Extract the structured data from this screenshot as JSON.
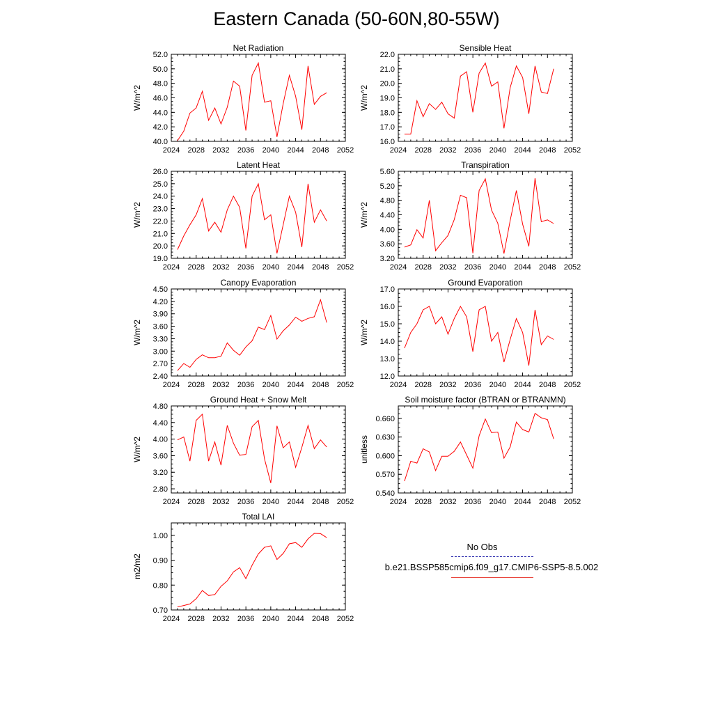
{
  "title": "Eastern Canada (50-60N,80-55W)",
  "legend": {
    "obs_label": "No Obs",
    "case_label": "b.e21.BSSP585cmip6.f09_g17.CMIP6-SSP5-8.5.002",
    "case_color": "#ff0000",
    "obs_color": "#2222aa"
  },
  "chart_data": [
    {
      "type": "line",
      "title": "Net Radiation",
      "ylabel": "W/m^2",
      "xlabel": "",
      "xlim": [
        2024,
        2052
      ],
      "ylim": [
        40.0,
        52.0
      ],
      "xticks": [
        2024,
        2028,
        2032,
        2036,
        2040,
        2044,
        2048,
        2052
      ],
      "yticks": [
        40.0,
        42.0,
        44.0,
        46.0,
        48.0,
        50.0,
        52.0
      ],
      "ytick_labels": [
        "40.0",
        "42.0",
        "44.0",
        "46.0",
        "48.0",
        "50.0",
        "52.0"
      ],
      "x": [
        2025,
        2026,
        2027,
        2028,
        2029,
        2030,
        2031,
        2032,
        2033,
        2034,
        2035,
        2036,
        2037,
        2038,
        2039,
        2040,
        2041,
        2042,
        2043,
        2044,
        2045,
        2046,
        2047,
        2048,
        2049
      ],
      "series": [
        {
          "values": [
            40.1,
            41.4,
            43.9,
            44.6,
            46.9,
            42.9,
            44.6,
            42.4,
            44.7,
            48.3,
            47.6,
            41.5,
            49.1,
            50.8,
            45.4,
            45.6,
            40.6,
            45.2,
            49.1,
            46.2,
            41.6,
            50.4,
            45.1,
            46.2,
            46.7
          ]
        }
      ]
    },
    {
      "type": "line",
      "title": "Sensible Heat",
      "ylabel": "W/m^2",
      "xlabel": "",
      "xlim": [
        2024,
        2052
      ],
      "ylim": [
        16.0,
        22.0
      ],
      "xticks": [
        2024,
        2028,
        2032,
        2036,
        2040,
        2044,
        2048,
        2052
      ],
      "yticks": [
        16.0,
        17.0,
        18.0,
        19.0,
        20.0,
        21.0,
        22.0
      ],
      "ytick_labels": [
        "16.0",
        "17.0",
        "18.0",
        "19.0",
        "20.0",
        "21.0",
        "22.0"
      ],
      "x": [
        2025,
        2026,
        2027,
        2028,
        2029,
        2030,
        2031,
        2032,
        2033,
        2034,
        2035,
        2036,
        2037,
        2038,
        2039,
        2040,
        2041,
        2042,
        2043,
        2044,
        2045,
        2046,
        2047,
        2048,
        2049
      ],
      "series": [
        {
          "values": [
            16.5,
            16.5,
            18.8,
            17.7,
            18.6,
            18.2,
            18.7,
            17.9,
            17.6,
            20.5,
            20.8,
            18.0,
            20.7,
            21.4,
            19.8,
            20.1,
            16.9,
            19.7,
            21.2,
            20.4,
            17.9,
            21.2,
            19.4,
            19.3,
            21.0
          ]
        }
      ]
    },
    {
      "type": "line",
      "title": "Latent Heat",
      "ylabel": "W/m^2",
      "xlabel": "",
      "xlim": [
        2024,
        2052
      ],
      "ylim": [
        19.0,
        26.0
      ],
      "xticks": [
        2024,
        2028,
        2032,
        2036,
        2040,
        2044,
        2048,
        2052
      ],
      "yticks": [
        19.0,
        20.0,
        21.0,
        22.0,
        23.0,
        24.0,
        25.0,
        26.0
      ],
      "ytick_labels": [
        "19.0",
        "20.0",
        "21.0",
        "22.0",
        "23.0",
        "24.0",
        "25.0",
        "26.0"
      ],
      "x": [
        2025,
        2026,
        2027,
        2028,
        2029,
        2030,
        2031,
        2032,
        2033,
        2034,
        2035,
        2036,
        2037,
        2038,
        2039,
        2040,
        2041,
        2042,
        2043,
        2044,
        2045,
        2046,
        2047,
        2048,
        2049
      ],
      "series": [
        {
          "values": [
            19.7,
            20.8,
            21.7,
            22.5,
            23.8,
            21.2,
            21.9,
            21.1,
            22.9,
            24.0,
            23.1,
            19.8,
            24.0,
            25.0,
            22.1,
            22.5,
            19.4,
            21.7,
            24.0,
            22.7,
            19.9,
            25.0,
            21.9,
            22.9,
            22.0
          ]
        }
      ]
    },
    {
      "type": "line",
      "title": "Transpiration",
      "ylabel": "W/m^2",
      "xlabel": "",
      "xlim": [
        2024,
        2052
      ],
      "ylim": [
        3.2,
        5.6
      ],
      "xticks": [
        2024,
        2028,
        2032,
        2036,
        2040,
        2044,
        2048,
        2052
      ],
      "yticks": [
        3.2,
        3.6,
        4.0,
        4.4,
        4.8,
        5.2,
        5.6
      ],
      "ytick_labels": [
        "3.20",
        "3.60",
        "4.00",
        "4.40",
        "4.80",
        "5.20",
        "5.60"
      ],
      "x": [
        2025,
        2026,
        2027,
        2028,
        2029,
        2030,
        2031,
        2032,
        2033,
        2034,
        2035,
        2036,
        2037,
        2038,
        2039,
        2040,
        2041,
        2042,
        2043,
        2044,
        2045,
        2046,
        2047,
        2048,
        2049
      ],
      "series": [
        {
          "values": [
            3.51,
            3.57,
            3.99,
            3.76,
            4.8,
            3.41,
            3.63,
            3.83,
            4.27,
            4.94,
            4.87,
            3.34,
            5.07,
            5.39,
            4.53,
            4.17,
            3.33,
            4.24,
            5.07,
            4.14,
            3.53,
            5.41,
            4.21,
            4.26,
            4.16
          ]
        }
      ]
    },
    {
      "type": "line",
      "title": "Canopy Evaporation",
      "ylabel": "W/m^2",
      "xlabel": "",
      "xlim": [
        2024,
        2052
      ],
      "ylim": [
        2.4,
        4.5
      ],
      "xticks": [
        2024,
        2028,
        2032,
        2036,
        2040,
        2044,
        2048,
        2052
      ],
      "yticks": [
        2.4,
        2.7,
        3.0,
        3.3,
        3.6,
        3.9,
        4.2,
        4.5
      ],
      "ytick_labels": [
        "2.40",
        "2.70",
        "3.00",
        "3.30",
        "3.60",
        "3.90",
        "4.20",
        "4.50"
      ],
      "x": [
        2025,
        2026,
        2027,
        2028,
        2029,
        2030,
        2031,
        2032,
        2033,
        2034,
        2035,
        2036,
        2037,
        2038,
        2039,
        2040,
        2041,
        2042,
        2043,
        2044,
        2045,
        2046,
        2047,
        2048,
        2049
      ],
      "series": [
        {
          "values": [
            2.53,
            2.7,
            2.61,
            2.8,
            2.91,
            2.84,
            2.84,
            2.88,
            3.2,
            3.02,
            2.9,
            3.1,
            3.25,
            3.58,
            3.52,
            3.86,
            3.29,
            3.49,
            3.63,
            3.82,
            3.72,
            3.79,
            3.83,
            4.24,
            3.69
          ]
        }
      ]
    },
    {
      "type": "line",
      "title": "Ground Evaporation",
      "ylabel": "W/m^2",
      "xlabel": "",
      "xlim": [
        2024,
        2052
      ],
      "ylim": [
        12.0,
        17.0
      ],
      "xticks": [
        2024,
        2028,
        2032,
        2036,
        2040,
        2044,
        2048,
        2052
      ],
      "yticks": [
        12.0,
        13.0,
        14.0,
        15.0,
        16.0,
        17.0
      ],
      "ytick_labels": [
        "12.0",
        "13.0",
        "14.0",
        "15.0",
        "16.0",
        "17.0"
      ],
      "x": [
        2025,
        2026,
        2027,
        2028,
        2029,
        2030,
        2031,
        2032,
        2033,
        2034,
        2035,
        2036,
        2037,
        2038,
        2039,
        2040,
        2041,
        2042,
        2043,
        2044,
        2045,
        2046,
        2047,
        2048,
        2049
      ],
      "series": [
        {
          "values": [
            13.6,
            14.5,
            15.0,
            15.8,
            16.0,
            15.0,
            15.4,
            14.4,
            15.3,
            16.0,
            15.4,
            13.4,
            15.8,
            16.0,
            14.0,
            14.5,
            12.8,
            14.1,
            15.3,
            14.5,
            12.6,
            15.8,
            13.8,
            14.3,
            14.1
          ]
        }
      ]
    },
    {
      "type": "line",
      "title": "Ground Heat + Snow Melt",
      "ylabel": "W/m^2",
      "xlabel": "",
      "xlim": [
        2024,
        2052
      ],
      "ylim": [
        2.7,
        4.8
      ],
      "xticks": [
        2024,
        2028,
        2032,
        2036,
        2040,
        2044,
        2048,
        2052
      ],
      "yticks": [
        2.8,
        3.2,
        3.6,
        4.0,
        4.4,
        4.8
      ],
      "ytick_labels": [
        "2.80",
        "3.20",
        "3.60",
        "4.00",
        "4.40",
        "4.80"
      ],
      "x": [
        2025,
        2026,
        2027,
        2028,
        2029,
        2030,
        2031,
        2032,
        2033,
        2034,
        2035,
        2036,
        2037,
        2038,
        2039,
        2040,
        2041,
        2042,
        2043,
        2044,
        2045,
        2046,
        2047,
        2048,
        2049
      ],
      "series": [
        {
          "values": [
            3.98,
            4.05,
            3.47,
            4.45,
            4.6,
            3.47,
            3.93,
            3.37,
            4.33,
            3.9,
            3.61,
            3.63,
            4.3,
            4.45,
            3.52,
            2.94,
            4.32,
            3.79,
            3.93,
            3.32,
            3.8,
            4.33,
            3.77,
            3.98,
            3.81
          ]
        }
      ]
    },
    {
      "type": "line",
      "title": "Soil moisture factor (BTRAN or BTRANMN)",
      "ylabel": "unitless",
      "xlabel": "",
      "xlim": [
        2024,
        2052
      ],
      "ylim": [
        0.54,
        0.68
      ],
      "xticks": [
        2024,
        2028,
        2032,
        2036,
        2040,
        2044,
        2048,
        2052
      ],
      "yticks": [
        0.54,
        0.57,
        0.6,
        0.63,
        0.66
      ],
      "ytick_labels": [
        "0.540",
        "0.570",
        "0.600",
        "0.630",
        "0.660"
      ],
      "x": [
        2025,
        2026,
        2027,
        2028,
        2029,
        2030,
        2031,
        2032,
        2033,
        2034,
        2035,
        2036,
        2037,
        2038,
        2039,
        2040,
        2041,
        2042,
        2043,
        2044,
        2045,
        2046,
        2047,
        2048,
        2049
      ],
      "series": [
        {
          "values": [
            0.559,
            0.591,
            0.588,
            0.611,
            0.606,
            0.576,
            0.599,
            0.599,
            0.607,
            0.622,
            0.601,
            0.58,
            0.632,
            0.659,
            0.637,
            0.638,
            0.596,
            0.614,
            0.654,
            0.642,
            0.638,
            0.668,
            0.661,
            0.658,
            0.627
          ]
        }
      ]
    },
    {
      "type": "line",
      "title": "Total LAI",
      "ylabel": "m2/m2",
      "xlabel": "",
      "xlim": [
        2024,
        2052
      ],
      "ylim": [
        0.7,
        1.05
      ],
      "xticks": [
        2024,
        2028,
        2032,
        2036,
        2040,
        2044,
        2048,
        2052
      ],
      "yticks": [
        0.7,
        0.8,
        0.9,
        1.0
      ],
      "ytick_labels": [
        "0.70",
        "0.80",
        "0.90",
        "1.00"
      ],
      "x": [
        2025,
        2026,
        2027,
        2028,
        2029,
        2030,
        2031,
        2032,
        2033,
        2034,
        2035,
        2036,
        2037,
        2038,
        2039,
        2040,
        2041,
        2042,
        2043,
        2044,
        2045,
        2046,
        2047,
        2048,
        2049
      ],
      "series": [
        {
          "values": [
            0.712,
            0.718,
            0.724,
            0.745,
            0.778,
            0.758,
            0.762,
            0.795,
            0.817,
            0.853,
            0.87,
            0.826,
            0.88,
            0.925,
            0.952,
            0.958,
            0.903,
            0.927,
            0.966,
            0.971,
            0.952,
            0.986,
            1.008,
            1.007,
            0.991
          ]
        }
      ]
    }
  ]
}
